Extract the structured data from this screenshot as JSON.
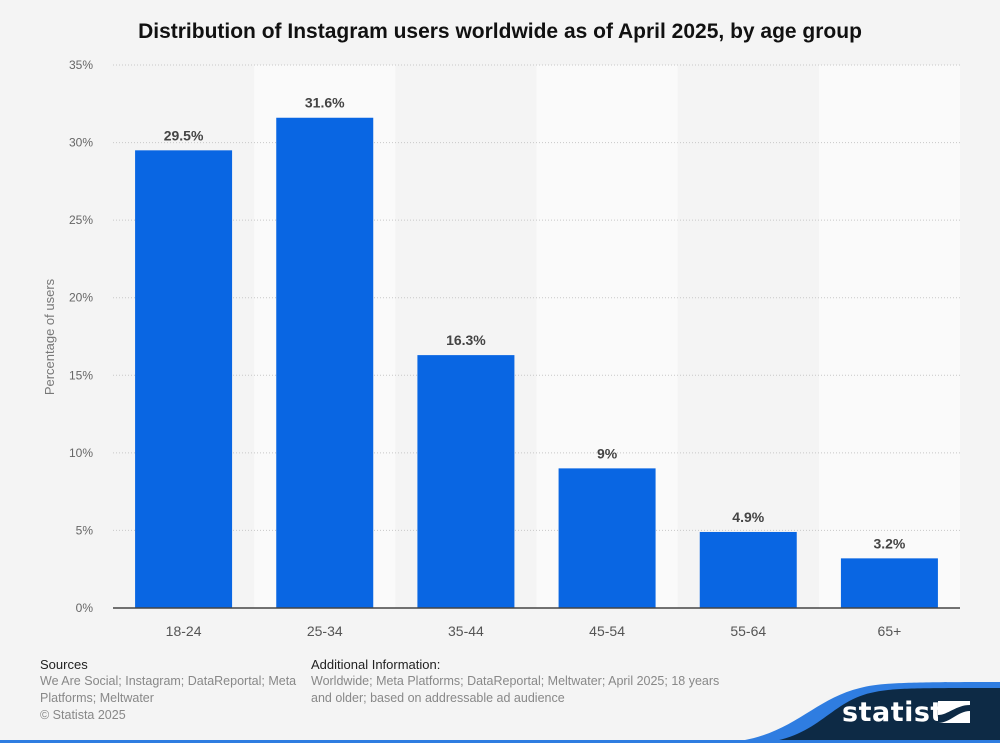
{
  "chart_data": {
    "type": "bar",
    "title": "Distribution of Instagram users worldwide as of April 2025, by age group",
    "xlabel": "",
    "ylabel": "Percentage of users",
    "categories": [
      "18-24",
      "25-34",
      "35-44",
      "45-54",
      "55-64",
      "65+"
    ],
    "values": [
      29.5,
      31.6,
      16.3,
      9,
      4.9,
      3.2
    ],
    "data_labels": [
      "29.5%",
      "31.6%",
      "16.3%",
      "9%",
      "4.9%",
      "3.2%"
    ],
    "ylim": [
      0,
      35
    ],
    "yticks": [
      0,
      5,
      10,
      15,
      20,
      25,
      30,
      35
    ],
    "ytick_labels": [
      "0%",
      "5%",
      "10%",
      "15%",
      "20%",
      "25%",
      "30%",
      "35%"
    ],
    "grid": true,
    "bar_color": "#0966e3",
    "legend": "none"
  },
  "footer": {
    "sources_heading": "Sources",
    "sources_text": "We Are Social; Instagram; DataReportal; Meta Platforms; Meltwater",
    "copyright": "© Statista 2025",
    "info_heading": "Additional Information:",
    "info_text": "Worldwide; Meta Platforms; DataReportal; Meltwater; April 2025; 18 years and older; based on addressable ad audience"
  },
  "brand": {
    "name": "statista",
    "navy": "#0d2a45",
    "accent": "#2f7de1"
  }
}
